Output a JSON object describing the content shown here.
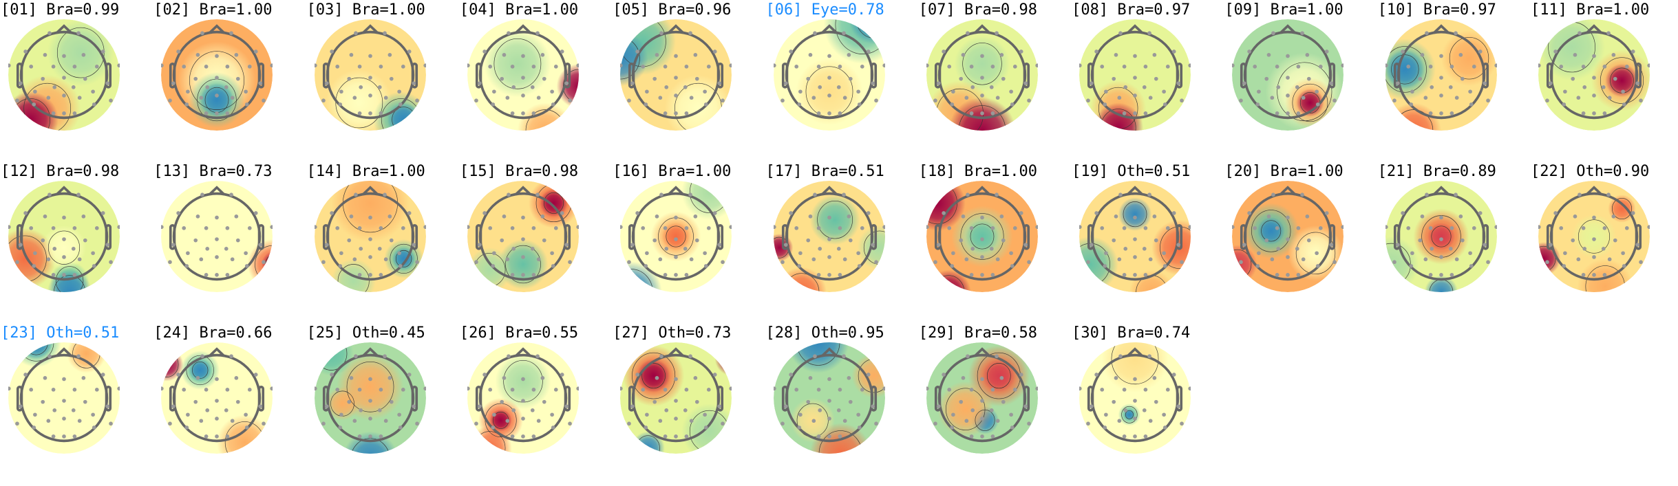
{
  "chart_data": {
    "type": "heatmap",
    "subtype": "ica-component-topomaps",
    "colormap": "Spectral (red = positive, blue = negative)",
    "highlight_color": "#1a8cff",
    "components": [
      {
        "title": "[01] Bra=0.99",
        "index": 1,
        "label": "Bra",
        "score": 0.99,
        "highlighted": false
      },
      {
        "title": "[02] Bra=1.00",
        "index": 2,
        "label": "Bra",
        "score": 1.0,
        "highlighted": false
      },
      {
        "title": "[03] Bra=1.00",
        "index": 3,
        "label": "Bra",
        "score": 1.0,
        "highlighted": false
      },
      {
        "title": "[04] Bra=1.00",
        "index": 4,
        "label": "Bra",
        "score": 1.0,
        "highlighted": false
      },
      {
        "title": "[05] Bra=0.96",
        "index": 5,
        "label": "Bra",
        "score": 0.96,
        "highlighted": false
      },
      {
        "title": "[06] Eye=0.78",
        "index": 6,
        "label": "Eye",
        "score": 0.78,
        "highlighted": true
      },
      {
        "title": "[07] Bra=0.98",
        "index": 7,
        "label": "Bra",
        "score": 0.98,
        "highlighted": false
      },
      {
        "title": "[08] Bra=0.97",
        "index": 8,
        "label": "Bra",
        "score": 0.97,
        "highlighted": false
      },
      {
        "title": "[09] Bra=1.00",
        "index": 9,
        "label": "Bra",
        "score": 1.0,
        "highlighted": false
      },
      {
        "title": "[10] Bra=0.97",
        "index": 10,
        "label": "Bra",
        "score": 0.97,
        "highlighted": false
      },
      {
        "title": "[11] Bra=1.00",
        "index": 11,
        "label": "Bra",
        "score": 1.0,
        "highlighted": false
      },
      {
        "title": "[12] Bra=0.98",
        "index": 12,
        "label": "Bra",
        "score": 0.98,
        "highlighted": false
      },
      {
        "title": "[13] Bra=0.73",
        "index": 13,
        "label": "Bra",
        "score": 0.73,
        "highlighted": false
      },
      {
        "title": "[14] Bra=1.00",
        "index": 14,
        "label": "Bra",
        "score": 1.0,
        "highlighted": false
      },
      {
        "title": "[15] Bra=0.98",
        "index": 15,
        "label": "Bra",
        "score": 0.98,
        "highlighted": false
      },
      {
        "title": "[16] Bra=1.00",
        "index": 16,
        "label": "Bra",
        "score": 1.0,
        "highlighted": false
      },
      {
        "title": "[17] Bra=0.51",
        "index": 17,
        "label": "Bra",
        "score": 0.51,
        "highlighted": false
      },
      {
        "title": "[18] Bra=1.00",
        "index": 18,
        "label": "Bra",
        "score": 1.0,
        "highlighted": false
      },
      {
        "title": "[19] Oth=0.51",
        "index": 19,
        "label": "Oth",
        "score": 0.51,
        "highlighted": false
      },
      {
        "title": "[20] Bra=1.00",
        "index": 20,
        "label": "Bra",
        "score": 1.0,
        "highlighted": false
      },
      {
        "title": "[21] Bra=0.89",
        "index": 21,
        "label": "Bra",
        "score": 0.89,
        "highlighted": false
      },
      {
        "title": "[22] Oth=0.90",
        "index": 22,
        "label": "Oth",
        "score": 0.9,
        "highlighted": false
      },
      {
        "title": "[23] Oth=0.51",
        "index": 23,
        "label": "Oth",
        "score": 0.51,
        "highlighted": true
      },
      {
        "title": "[24] Bra=0.66",
        "index": 24,
        "label": "Bra",
        "score": 0.66,
        "highlighted": false
      },
      {
        "title": "[25] Oth=0.45",
        "index": 25,
        "label": "Oth",
        "score": 0.45,
        "highlighted": false
      },
      {
        "title": "[26] Bra=0.55",
        "index": 26,
        "label": "Bra",
        "score": 0.55,
        "highlighted": false
      },
      {
        "title": "[27] Oth=0.73",
        "index": 27,
        "label": "Oth",
        "score": 0.73,
        "highlighted": false
      },
      {
        "title": "[28] Oth=0.95",
        "index": 28,
        "label": "Oth",
        "score": 0.95,
        "highlighted": false
      },
      {
        "title": "[29] Bra=0.58",
        "index": 29,
        "label": "Bra",
        "score": 0.58,
        "highlighted": false
      },
      {
        "title": "[30] Bra=0.74",
        "index": 30,
        "label": "Bra",
        "score": 0.74,
        "highlighted": false
      }
    ]
  }
}
